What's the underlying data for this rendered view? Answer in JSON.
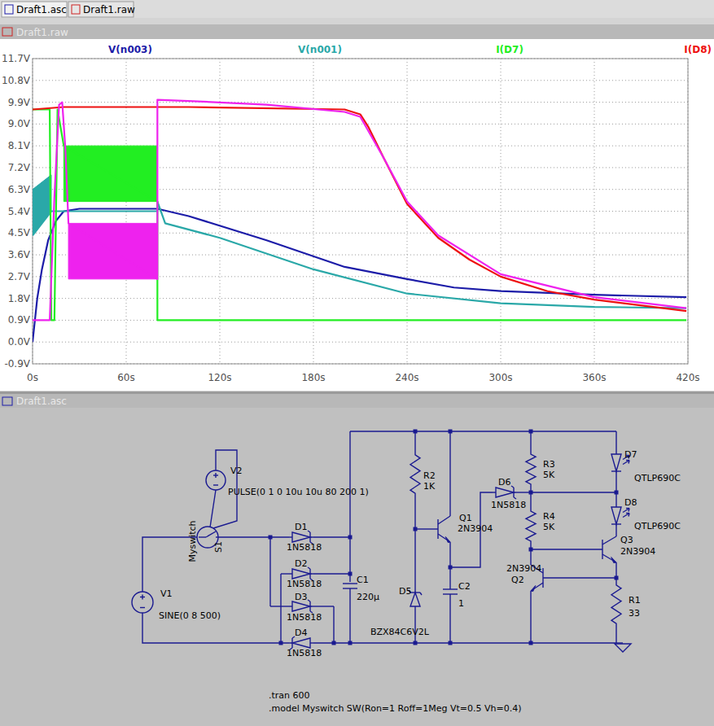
{
  "window": {
    "tabs": [
      "Draft1.asc",
      "Draft1.raw"
    ],
    "plot_pane": "Draft1.raw",
    "schematic_pane": "Draft1.asc"
  },
  "chart_data": {
    "type": "line",
    "xlim": [
      0,
      420
    ],
    "ylim": [
      -0.9,
      11.7
    ],
    "xticks": [
      {
        "value": 0,
        "label": "0s"
      },
      {
        "value": 60,
        "label": "60s"
      },
      {
        "value": 120,
        "label": "120s"
      },
      {
        "value": 180,
        "label": "180s"
      },
      {
        "value": 240,
        "label": "240s"
      },
      {
        "value": 300,
        "label": "300s"
      },
      {
        "value": 360,
        "label": "360s"
      },
      {
        "value": 420,
        "label": "420s"
      }
    ],
    "yticks": [
      {
        "value": -0.9,
        "label": "-0.9V"
      },
      {
        "value": 0,
        "label": "0.0V"
      },
      {
        "value": 0.9,
        "label": "0.9V"
      },
      {
        "value": 1.8,
        "label": "1.8V"
      },
      {
        "value": 2.7,
        "label": "2.7V"
      },
      {
        "value": 3.6,
        "label": "3.6V"
      },
      {
        "value": 4.5,
        "label": "4.5V"
      },
      {
        "value": 5.4,
        "label": "5.4V"
      },
      {
        "value": 6.3,
        "label": "6.3V"
      },
      {
        "value": 7.2,
        "label": "7.2V"
      },
      {
        "value": 8.1,
        "label": "8.1V"
      },
      {
        "value": 9.0,
        "label": "9.0V"
      },
      {
        "value": 9.9,
        "label": "9.9V"
      },
      {
        "value": 10.8,
        "label": "10.8V"
      },
      {
        "value": 11.7,
        "label": "11.7V"
      }
    ],
    "grid": true,
    "legend": "top",
    "series": [
      {
        "name": "V(n003)",
        "color": "#1c1ca8",
        "x": [
          0,
          3,
          6,
          10,
          15,
          20,
          30,
          80,
          100,
          150,
          200,
          240,
          270,
          300,
          360,
          419
        ],
        "values": [
          0,
          1.8,
          3.0,
          4.2,
          5.0,
          5.4,
          5.5,
          5.5,
          5.2,
          4.2,
          3.1,
          2.6,
          2.25,
          2.1,
          1.95,
          1.85
        ]
      },
      {
        "name": "V(n001)",
        "color": "#2aa8a8",
        "x": [
          0,
          12,
          15,
          20,
          80,
          80,
          85,
          120,
          180,
          240,
          300,
          360,
          419
        ],
        "values": [
          4.4,
          5.4,
          5.4,
          5.4,
          5.4,
          5.8,
          4.9,
          4.3,
          3.0,
          2.0,
          1.6,
          1.45,
          1.4
        ],
        "band_x": [
          0,
          12
        ],
        "band_low": [
          4.4,
          5.4
        ],
        "band_high": [
          6.3,
          6.9
        ]
      },
      {
        "name": "I(D7)",
        "color": "#22ee22",
        "x": [
          0,
          11,
          12,
          14,
          16,
          20,
          80,
          80,
          419
        ],
        "values": [
          9.6,
          9.6,
          0.9,
          0.9,
          9.6,
          8.1,
          5.8,
          0.9,
          0.9
        ],
        "band_x": [
          20,
          80
        ],
        "band_low": [
          5.8,
          5.8
        ],
        "band_high": [
          8.1,
          8.1
        ]
      },
      {
        "name": "I(D8)",
        "color": "#ee1111",
        "x": [
          0,
          10,
          20,
          100,
          200,
          210,
          215,
          225,
          240,
          260,
          280,
          300,
          330,
          360,
          419
        ],
        "values": [
          9.6,
          9.65,
          9.7,
          9.7,
          9.6,
          9.4,
          8.9,
          7.6,
          5.7,
          4.3,
          3.4,
          2.7,
          2.1,
          1.75,
          1.28
        ]
      },
      {
        "color": "#ee22ee",
        "x": [
          0,
          11,
          14,
          17,
          19,
          21,
          23,
          80,
          80,
          100,
          150,
          200,
          210,
          225,
          240,
          260,
          300,
          360,
          419
        ],
        "values": [
          0.9,
          0.9,
          6.0,
          9.8,
          9.9,
          8.0,
          4.9,
          2.6,
          10.0,
          9.95,
          9.8,
          9.5,
          9.3,
          7.6,
          5.8,
          4.4,
          2.8,
          1.85,
          1.4
        ],
        "band_x": [
          23,
          80
        ],
        "band_low": [
          2.6,
          2.6
        ],
        "band_high": [
          4.9,
          4.9
        ]
      }
    ]
  },
  "schematic": {
    "components": [
      {
        "name": "V1",
        "value": "SINE(0 8 500)"
      },
      {
        "name": "V2",
        "value": "PULSE(0 1 0 10u 10u 80 200 1)"
      },
      {
        "name": "S1",
        "value": "Myswitch"
      },
      {
        "name": "D1",
        "value": "1N5818"
      },
      {
        "name": "D2",
        "value": "1N5818"
      },
      {
        "name": "D3",
        "value": "1N5818"
      },
      {
        "name": "D4",
        "value": "1N5818"
      },
      {
        "name": "C1",
        "value": "220µ"
      },
      {
        "name": "R2",
        "value": "1K"
      },
      {
        "name": "D5",
        "value": "BZX84C6V2L"
      },
      {
        "name": "Q1",
        "value": "2N3904"
      },
      {
        "name": "C2",
        "value": "1"
      },
      {
        "name": "D6",
        "value": "1N5818"
      },
      {
        "name": "R3",
        "value": "5K"
      },
      {
        "name": "R4",
        "value": "5K"
      },
      {
        "name": "D7",
        "value": "QTLP690C"
      },
      {
        "name": "D8",
        "value": "QTLP690C"
      },
      {
        "name": "Q2",
        "value": "2N3904"
      },
      {
        "name": "Q3",
        "value": "2N3904"
      },
      {
        "name": "R1",
        "value": "33"
      }
    ],
    "directives": [
      ".tran 600",
      ".model Myswitch SW(Ron=1 Roff=1Meg Vt=0.5 Vh=0.4)"
    ]
  }
}
